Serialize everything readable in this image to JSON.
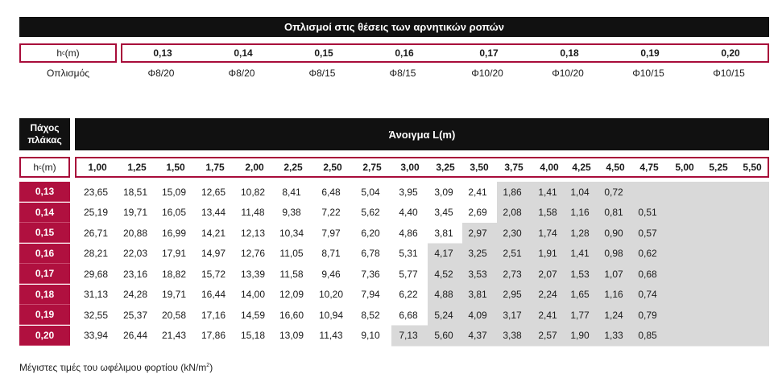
{
  "table1": {
    "title": "Οπλισμοί στις θέσεις των αρνητικών ροπών",
    "hc_label": "h",
    "hc_sub": "c",
    "hc_unit": " (m)",
    "thickness_values": [
      "0,13",
      "0,14",
      "0,15",
      "0,16",
      "0,17",
      "0,18",
      "0,19",
      "0,20"
    ],
    "row_label": "Οπλισμός",
    "reinforcement": [
      "Φ8/20",
      "Φ8/20",
      "Φ8/15",
      "Φ8/15",
      "Φ10/20",
      "Φ10/20",
      "Φ10/15",
      "Φ10/15"
    ]
  },
  "table2": {
    "corner_line1": "Πάχος",
    "corner_line2": "πλάκας",
    "title": "Άνοιγμα L(m)",
    "hc_label": "h",
    "hc_sub": "c",
    "hc_unit": " (m)",
    "spans": [
      "1,00",
      "1,25",
      "1,50",
      "1,75",
      "2,00",
      "2,25",
      "2,50",
      "2,75",
      "3,00",
      "3,25",
      "3,50",
      "3,75",
      "4,00",
      "4,25",
      "4,50",
      "4,75",
      "5,00",
      "5,25",
      "5,50"
    ],
    "rows": [
      {
        "thickness": "0,13",
        "values": [
          "23,65",
          "18,51",
          "15,09",
          "12,65",
          "10,82",
          "8,41",
          "6,48",
          "5,04",
          "3,95",
          "3,09",
          "2,41",
          "1,86",
          "1,41",
          "1,04",
          "0,72",
          "",
          "",
          "",
          ""
        ],
        "shade_from": 11
      },
      {
        "thickness": "0,14",
        "values": [
          "25,19",
          "19,71",
          "16,05",
          "13,44",
          "11,48",
          "9,38",
          "7,22",
          "5,62",
          "4,40",
          "3,45",
          "2,69",
          "2,08",
          "1,58",
          "1,16",
          "0,81",
          "0,51",
          "",
          "",
          ""
        ],
        "shade_from": 11
      },
      {
        "thickness": "0,15",
        "values": [
          "26,71",
          "20,88",
          "16,99",
          "14,21",
          "12,13",
          "10,34",
          "7,97",
          "6,20",
          "4,86",
          "3,81",
          "2,97",
          "2,30",
          "1,74",
          "1,28",
          "0,90",
          "0,57",
          "",
          "",
          ""
        ],
        "shade_from": 10
      },
      {
        "thickness": "0,16",
        "values": [
          "28,21",
          "22,03",
          "17,91",
          "14,97",
          "12,76",
          "11,05",
          "8,71",
          "6,78",
          "5,31",
          "4,17",
          "3,25",
          "2,51",
          "1,91",
          "1,41",
          "0,98",
          "0,62",
          "",
          "",
          ""
        ],
        "shade_from": 9
      },
      {
        "thickness": "0,17",
        "values": [
          "29,68",
          "23,16",
          "18,82",
          "15,72",
          "13,39",
          "11,58",
          "9,46",
          "7,36",
          "5,77",
          "4,52",
          "3,53",
          "2,73",
          "2,07",
          "1,53",
          "1,07",
          "0,68",
          "",
          "",
          ""
        ],
        "shade_from": 9
      },
      {
        "thickness": "0,18",
        "values": [
          "31,13",
          "24,28",
          "19,71",
          "16,44",
          "14,00",
          "12,09",
          "10,20",
          "7,94",
          "6,22",
          "4,88",
          "3,81",
          "2,95",
          "2,24",
          "1,65",
          "1,16",
          "0,74",
          "",
          "",
          ""
        ],
        "shade_from": 9
      },
      {
        "thickness": "0,19",
        "values": [
          "32,55",
          "25,37",
          "20,58",
          "17,16",
          "14,59",
          "16,60",
          "10,94",
          "8,52",
          "6,68",
          "5,24",
          "4,09",
          "3,17",
          "2,41",
          "1,77",
          "1,24",
          "0,79",
          "",
          "",
          ""
        ],
        "shade_from": 9
      },
      {
        "thickness": "0,20",
        "values": [
          "33,94",
          "26,44",
          "21,43",
          "17,86",
          "15,18",
          "13,09",
          "11,43",
          "9,10",
          "7,13",
          "5,60",
          "4,37",
          "3,38",
          "2,57",
          "1,90",
          "1,33",
          "0,85",
          "",
          "",
          ""
        ],
        "shade_from": 8
      }
    ],
    "footnote": "Μέγιστες τιμές του ωφέλιμου φορτίου (kN/m",
    "footnote_sup": "2",
    "footnote_end": ")"
  },
  "colors": {
    "header_black": "#111111",
    "accent_crimson": "#b0103f",
    "border_crimson": "#a80c3a",
    "shade_grey": "#d9d9d9"
  }
}
